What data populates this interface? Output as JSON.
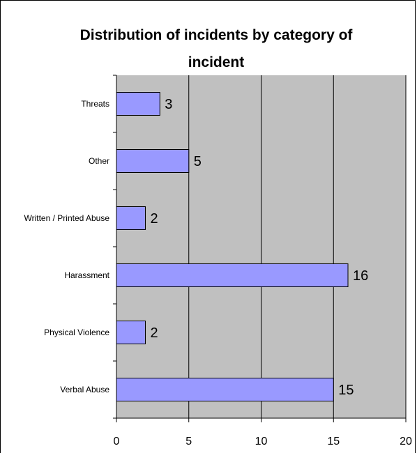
{
  "chart_data": {
    "type": "bar",
    "orientation": "horizontal",
    "title_lines": [
      "Distribution of incidents by category of",
      "incident"
    ],
    "categories": [
      "Threats",
      "Other",
      "Written / Printed Abuse",
      "Harassment",
      "Physical Violence",
      "Verbal Abuse"
    ],
    "values": [
      3,
      5,
      2,
      16,
      2,
      15
    ],
    "data_labels": [
      "3",
      "5",
      "2",
      "16",
      "2",
      "15"
    ],
    "xlim": [
      0,
      20
    ],
    "x_ticks": [
      "0",
      "5",
      "10",
      "15",
      "20"
    ],
    "xlabel": "",
    "ylabel": "",
    "grid": "vertical",
    "legend": "none",
    "colors": {
      "bar_fill": "#9999ff",
      "plot_background": "#c0c0c0",
      "grid": "#000000"
    }
  }
}
